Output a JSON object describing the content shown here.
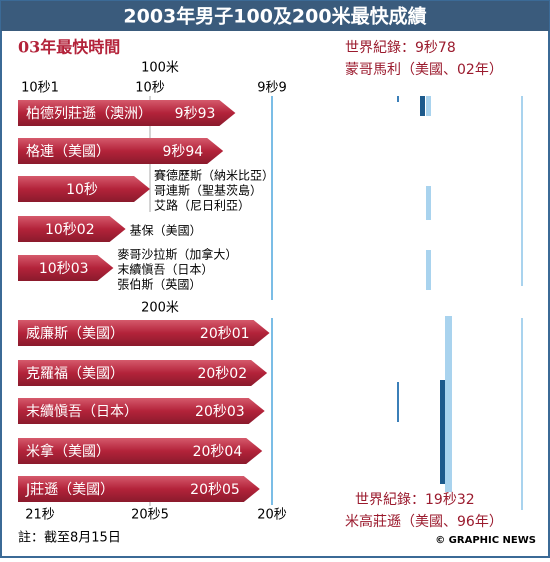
{
  "title": "2003年男子100及200米最快成績",
  "subtitle": "03年最快時間",
  "chart_data": [
    {
      "type": "arrow-bar",
      "axis_title": "100米",
      "xlim": [
        10.1,
        9.9
      ],
      "xticks": [
        {
          "value": 10.1,
          "label": "10秒1"
        },
        {
          "value": 10,
          "label": "10秒"
        },
        {
          "value": 9.9,
          "label": "9秒9"
        }
      ],
      "record_label": "世界紀錄：9秒78",
      "record_holder": "蒙哥馬利（美國、02年）",
      "rows": [
        {
          "athletes": [
            "柏德列莊遜（澳洲）"
          ],
          "value": 9.93,
          "value_label": "9秒93"
        },
        {
          "athletes": [
            "格連（美國）"
          ],
          "value": 9.94,
          "value_label": "9秒94"
        },
        {
          "athletes": [
            "賽德歷斯（納米比亞）",
            "哥連斯（聖基茨島）",
            "艾路（尼日利亞）"
          ],
          "value": 10,
          "value_label": "10秒"
        },
        {
          "athletes": [
            "基保（美國）"
          ],
          "value": 10.02,
          "value_label": "10秒02"
        },
        {
          "athletes": [
            "麥哥沙拉斯（加拿大）",
            "末續愼吾（日本）",
            "張伯斯（英國）"
          ],
          "value": 10.03,
          "value_label": "10秒03"
        }
      ]
    },
    {
      "type": "arrow-bar",
      "axis_title": "200米",
      "xlim": [
        21,
        20
      ],
      "xticks": [
        {
          "value": 21,
          "label": "21秒"
        },
        {
          "value": 20.5,
          "label": "20秒5"
        },
        {
          "value": 20,
          "label": "20秒"
        }
      ],
      "record_label": "世界紀錄：19秒32",
      "record_holder": "米高莊遜（美國、96年）",
      "rows": [
        {
          "athletes": [
            "威廉斯（美國）"
          ],
          "value": 20.01,
          "value_label": "20秒01"
        },
        {
          "athletes": [
            "克羅福（美國）"
          ],
          "value": 20.02,
          "value_label": "20秒02"
        },
        {
          "athletes": [
            "末續愼吾（日本）"
          ],
          "value": 20.03,
          "value_label": "20秒03"
        },
        {
          "athletes": [
            "米拿（美國）"
          ],
          "value": 20.04,
          "value_label": "20秒04"
        },
        {
          "athletes": [
            "J莊遜（美國）"
          ],
          "value": 20.05,
          "value_label": "20秒05"
        }
      ]
    }
  ],
  "footnote": "註：截至8月15日",
  "credit": "© GRAPHIC NEWS"
}
